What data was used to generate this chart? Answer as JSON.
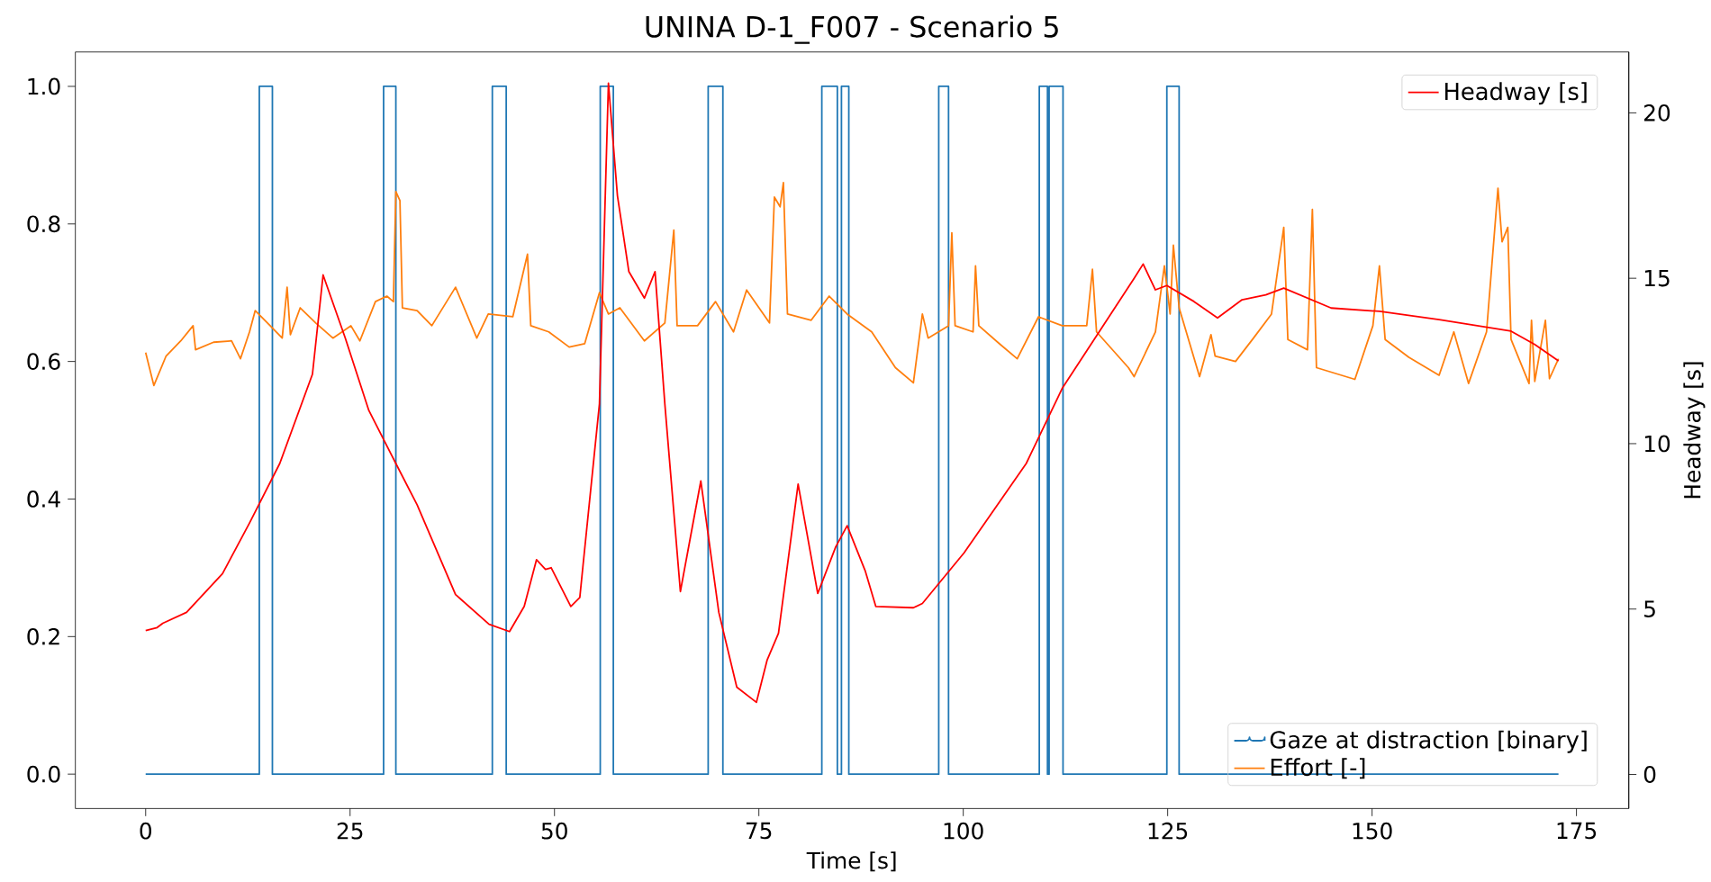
{
  "chart_data": {
    "type": "line",
    "title": "UNINA D-1_F007 - Scenario 5",
    "xlabel": "Time [s]",
    "y2label": "Headway [s]",
    "xlim": [
      -8.6,
      181.4
    ],
    "ylim": [
      -0.05,
      1.05
    ],
    "y2lim": [
      -1.03,
      21.84
    ],
    "xticks": [
      0,
      25,
      50,
      75,
      100,
      125,
      150,
      175
    ],
    "yticks": [
      {
        "value": 0,
        "label": "0.0"
      },
      {
        "value": 0.2,
        "label": "0.2"
      },
      {
        "value": 0.4,
        "label": "0.4"
      },
      {
        "value": 0.6,
        "label": "0.6"
      },
      {
        "value": 0.8,
        "label": "0.8"
      },
      {
        "value": 1,
        "label": "1.0"
      }
    ],
    "y2ticks": [
      0,
      5,
      10,
      15,
      20
    ],
    "legend": "bottom right",
    "grid": false,
    "series": [
      {
        "name": "Gaze at distraction [binary]",
        "type": "step",
        "color": "#1f77b4",
        "x": [
          0,
          13.9,
          15.5,
          29.1,
          30.6,
          42.4,
          44.1,
          55.6,
          57.2,
          68.8,
          70.6,
          82.7,
          84.6,
          85.1,
          86.0,
          97.0,
          98.2,
          109.3,
          110.3,
          110.5,
          112.2,
          124.9,
          126.4,
          172.8
        ],
        "values": [
          0,
          1,
          0,
          1,
          0,
          1,
          0,
          1,
          0,
          1,
          0,
          1,
          0,
          1,
          0,
          1,
          0,
          1,
          0,
          1,
          0,
          1,
          0,
          0
        ]
      },
      {
        "name": "Effort [-]",
        "type": "line",
        "color": "#ff7f0e",
        "x": [
          0,
          1.0,
          2.5,
          4.3,
          5.8,
          6.1,
          8.3,
          10.5,
          11.6,
          12.7,
          13.4,
          14.9,
          16.7,
          17.3,
          17.7,
          18.9,
          20.8,
          22.9,
          25.1,
          26.2,
          28.1,
          29.5,
          30.3,
          30.6,
          31.1,
          31.4,
          33.2,
          35.0,
          37.9,
          40.5,
          41.9,
          44.9,
          46.7,
          47.1,
          49.3,
          51.8,
          53.7,
          55.5,
          56.6,
          58.0,
          61.0,
          63.5,
          64.6,
          65.0,
          67.5,
          69.7,
          71.9,
          73.5,
          76.3,
          76.9,
          77.6,
          78.0,
          78.5,
          81.4,
          83.6,
          85.8,
          88.8,
          91.7,
          93.9,
          95.0,
          95.7,
          98.2,
          98.6,
          99.0,
          101.2,
          101.5,
          101.9,
          104.4,
          106.6,
          109.2,
          112.1,
          115.1,
          115.8,
          116.3,
          120.2,
          120.9,
          123.5,
          124.6,
          125.3,
          125.7,
          126.4,
          128.9,
          130.3,
          130.8,
          133.3,
          135.5,
          137.7,
          139.2,
          139.7,
          142.1,
          142.7,
          143.2,
          147.9,
          150.1,
          150.9,
          151.6,
          154.5,
          158.2,
          160.0,
          161.8,
          164.0,
          165.4,
          165.9,
          166.6,
          167.0,
          169.2,
          169.5,
          169.9,
          171.2,
          171.7,
          172.8
        ],
        "values": [
          0.613,
          0.565,
          0.608,
          0.63,
          0.652,
          0.617,
          0.628,
          0.63,
          0.604,
          0.643,
          0.674,
          0.656,
          0.634,
          0.708,
          0.639,
          0.678,
          0.656,
          0.634,
          0.652,
          0.63,
          0.687,
          0.695,
          0.687,
          0.847,
          0.834,
          0.678,
          0.674,
          0.652,
          0.708,
          0.634,
          0.669,
          0.665,
          0.756,
          0.652,
          0.643,
          0.621,
          0.626,
          0.7,
          0.669,
          0.678,
          0.63,
          0.656,
          0.791,
          0.652,
          0.652,
          0.687,
          0.643,
          0.704,
          0.656,
          0.839,
          0.825,
          0.86,
          0.669,
          0.66,
          0.695,
          0.669,
          0.643,
          0.591,
          0.569,
          0.669,
          0.634,
          0.652,
          0.787,
          0.652,
          0.643,
          0.739,
          0.652,
          0.626,
          0.604,
          0.665,
          0.652,
          0.652,
          0.734,
          0.643,
          0.591,
          0.578,
          0.643,
          0.739,
          0.669,
          0.769,
          0.678,
          0.578,
          0.639,
          0.608,
          0.6,
          0.634,
          0.669,
          0.795,
          0.632,
          0.617,
          0.821,
          0.591,
          0.574,
          0.652,
          0.739,
          0.632,
          0.606,
          0.58,
          0.643,
          0.568,
          0.643,
          0.852,
          0.774,
          0.795,
          0.632,
          0.568,
          0.66,
          0.571,
          0.66,
          0.575,
          0.604
        ]
      },
      {
        "name": "Headway [s]",
        "type": "line",
        "axis": "y2",
        "color": "#ff0000",
        "x": [
          0,
          1.4,
          2.1,
          5.0,
          9.4,
          12.7,
          16.4,
          20.4,
          21.7,
          24.4,
          27.3,
          30.6,
          33.2,
          37.9,
          42.0,
          44.5,
          46.3,
          47.8,
          48.9,
          49.6,
          52.0,
          53.1,
          53.5,
          55.5,
          56.6,
          57.7,
          59.1,
          61.0,
          62.3,
          63.5,
          65.4,
          67.9,
          70.1,
          72.3,
          74.7,
          76.0,
          77.4,
          79.8,
          82.2,
          84.4,
          85.8,
          88.0,
          89.3,
          93.9,
          95.0,
          100.1,
          107.7,
          112.1,
          120.9,
          122.0,
          123.5,
          124.9,
          128.2,
          131.1,
          134.1,
          137.0,
          139.2,
          145.0,
          150.9,
          158.2,
          167.0,
          169.9,
          172.8
        ],
        "values": [
          4.35,
          4.44,
          4.57,
          4.9,
          6.07,
          7.6,
          9.4,
          12.1,
          15.1,
          13.2,
          11.0,
          9.4,
          8.15,
          5.44,
          4.54,
          4.32,
          5.08,
          6.49,
          6.2,
          6.25,
          5.08,
          5.35,
          6.34,
          11.2,
          20.9,
          17.5,
          15.2,
          14.4,
          15.2,
          11.2,
          5.53,
          8.87,
          4.9,
          2.64,
          2.18,
          3.45,
          4.27,
          8.78,
          5.47,
          6.88,
          7.52,
          6.16,
          5.08,
          5.04,
          5.17,
          6.7,
          9.4,
          11.67,
          15.0,
          15.43,
          14.65,
          14.78,
          14.3,
          13.8,
          14.35,
          14.5,
          14.7,
          14.1,
          14.0,
          13.75,
          13.4,
          13.0,
          12.5
        ]
      }
    ]
  }
}
